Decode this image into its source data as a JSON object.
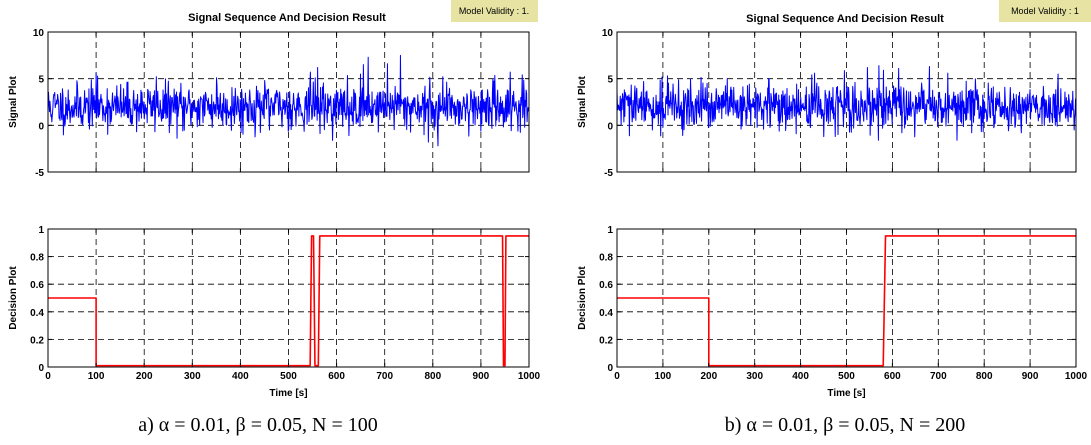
{
  "panels": [
    {
      "id": "a",
      "title": "Signal Sequence And Decision Result",
      "badge": "Model Validity : 1.",
      "caption": "a)  α = 0.01,  β = 0.05,  N = 100"
    },
    {
      "id": "b",
      "title": "Signal Sequence And Decision Result",
      "badge": "Model Validity : 1",
      "caption": "b)  α = 0.01,  β = 0.05,  N = 200"
    }
  ],
  "colors": {
    "signal": "#0000ff",
    "decision": "#ff0000",
    "badge_bg": "#e6e3a3",
    "grid": "#000000"
  },
  "chart_data": [
    {
      "type": "line",
      "panel": "a",
      "title": "Signal Sequence And Decision Result",
      "ylabel": "Signal Plot",
      "xlabel": "",
      "xlim": [
        0,
        1000
      ],
      "ylim": [
        -5,
        10
      ],
      "yticks": [
        -5,
        0,
        5,
        10
      ],
      "xticks": [
        0,
        100,
        200,
        300,
        400,
        500,
        600,
        700,
        800,
        900,
        1000
      ],
      "grid": true,
      "series": [
        {
          "style": "noise",
          "n": 1000,
          "mean": 2,
          "sd": 1.2,
          "seed": 11,
          "peaks": [
            [
              100,
              5.6
            ],
            [
              225,
              5.2
            ],
            [
              350,
              5.1
            ],
            [
              545,
              5.7
            ],
            [
              560,
              6.2
            ],
            [
              655,
              6.5
            ],
            [
              665,
              7.3
            ],
            [
              705,
              6.6
            ],
            [
              732,
              7.5
            ],
            [
              820,
              5.2
            ],
            [
              960,
              5.7
            ],
            [
              985,
              5.4
            ]
          ],
          "troughs": [
            [
              280,
              -0.6
            ],
            [
              460,
              -0.5
            ],
            [
              625,
              -1.1
            ],
            [
              790,
              -1.8
            ],
            [
              810,
              -2.2
            ],
            [
              990,
              -0.2
            ]
          ]
        }
      ]
    },
    {
      "type": "line",
      "panel": "a",
      "title": "",
      "ylabel": "Decision Plot",
      "xlabel": "Time [s]",
      "xlim": [
        0,
        1000
      ],
      "ylim": [
        0,
        1
      ],
      "yticks": [
        0,
        0.2,
        0.4,
        0.6,
        0.8,
        1
      ],
      "xticks": [
        0,
        100,
        200,
        300,
        400,
        500,
        600,
        700,
        800,
        900,
        1000
      ],
      "grid": true,
      "series": [
        {
          "style": "step",
          "points": [
            [
              0,
              0.5
            ],
            [
              100,
              0.5
            ],
            [
              100,
              0.01
            ],
            [
              545,
              0.01
            ],
            [
              548,
              0.95
            ],
            [
              552,
              0.95
            ],
            [
              555,
              0.01
            ],
            [
              562,
              0.01
            ],
            [
              565,
              0.95
            ],
            [
              945,
              0.95
            ],
            [
              947,
              0.01
            ],
            [
              950,
              0.01
            ],
            [
              952,
              0.95
            ],
            [
              1000,
              0.95
            ]
          ]
        }
      ]
    },
    {
      "type": "line",
      "panel": "b",
      "title": "Signal Sequence And Decision Result",
      "ylabel": "Signal Plot",
      "xlabel": "",
      "xlim": [
        0,
        1000
      ],
      "ylim": [
        -5,
        10
      ],
      "yticks": [
        -5,
        0,
        5,
        10
      ],
      "xticks": [
        0,
        100,
        200,
        300,
        400,
        500,
        600,
        700,
        800,
        900,
        1000
      ],
      "grid": true,
      "series": [
        {
          "style": "noise",
          "n": 1000,
          "mean": 2,
          "sd": 1.2,
          "seed": 29,
          "peaks": [
            [
              110,
              5.3
            ],
            [
              240,
              5.0
            ],
            [
              330,
              5.0
            ],
            [
              430,
              5.6
            ],
            [
              545,
              6.2
            ],
            [
              570,
              6.4
            ],
            [
              580,
              5.9
            ],
            [
              680,
              6.3
            ],
            [
              720,
              5.6
            ],
            [
              880,
              5.1
            ],
            [
              960,
              5.5
            ]
          ],
          "troughs": [
            [
              270,
              -0.4
            ],
            [
              390,
              -0.9
            ],
            [
              475,
              -1.2
            ],
            [
              620,
              -0.8
            ],
            [
              740,
              -1.6
            ],
            [
              880,
              -0.8
            ]
          ]
        }
      ]
    },
    {
      "type": "line",
      "panel": "b",
      "title": "",
      "ylabel": "Decision Plot",
      "xlabel": "Time [s]",
      "xlim": [
        0,
        1000
      ],
      "ylim": [
        0,
        1
      ],
      "yticks": [
        0,
        0.2,
        0.4,
        0.6,
        0.8,
        1
      ],
      "xticks": [
        0,
        100,
        200,
        300,
        400,
        500,
        600,
        700,
        800,
        900,
        1000
      ],
      "grid": true,
      "series": [
        {
          "style": "step",
          "points": [
            [
              0,
              0.5
            ],
            [
              200,
              0.5
            ],
            [
              200,
              0.01
            ],
            [
              580,
              0.01
            ],
            [
              585,
              0.95
            ],
            [
              1000,
              0.95
            ]
          ]
        }
      ]
    }
  ]
}
